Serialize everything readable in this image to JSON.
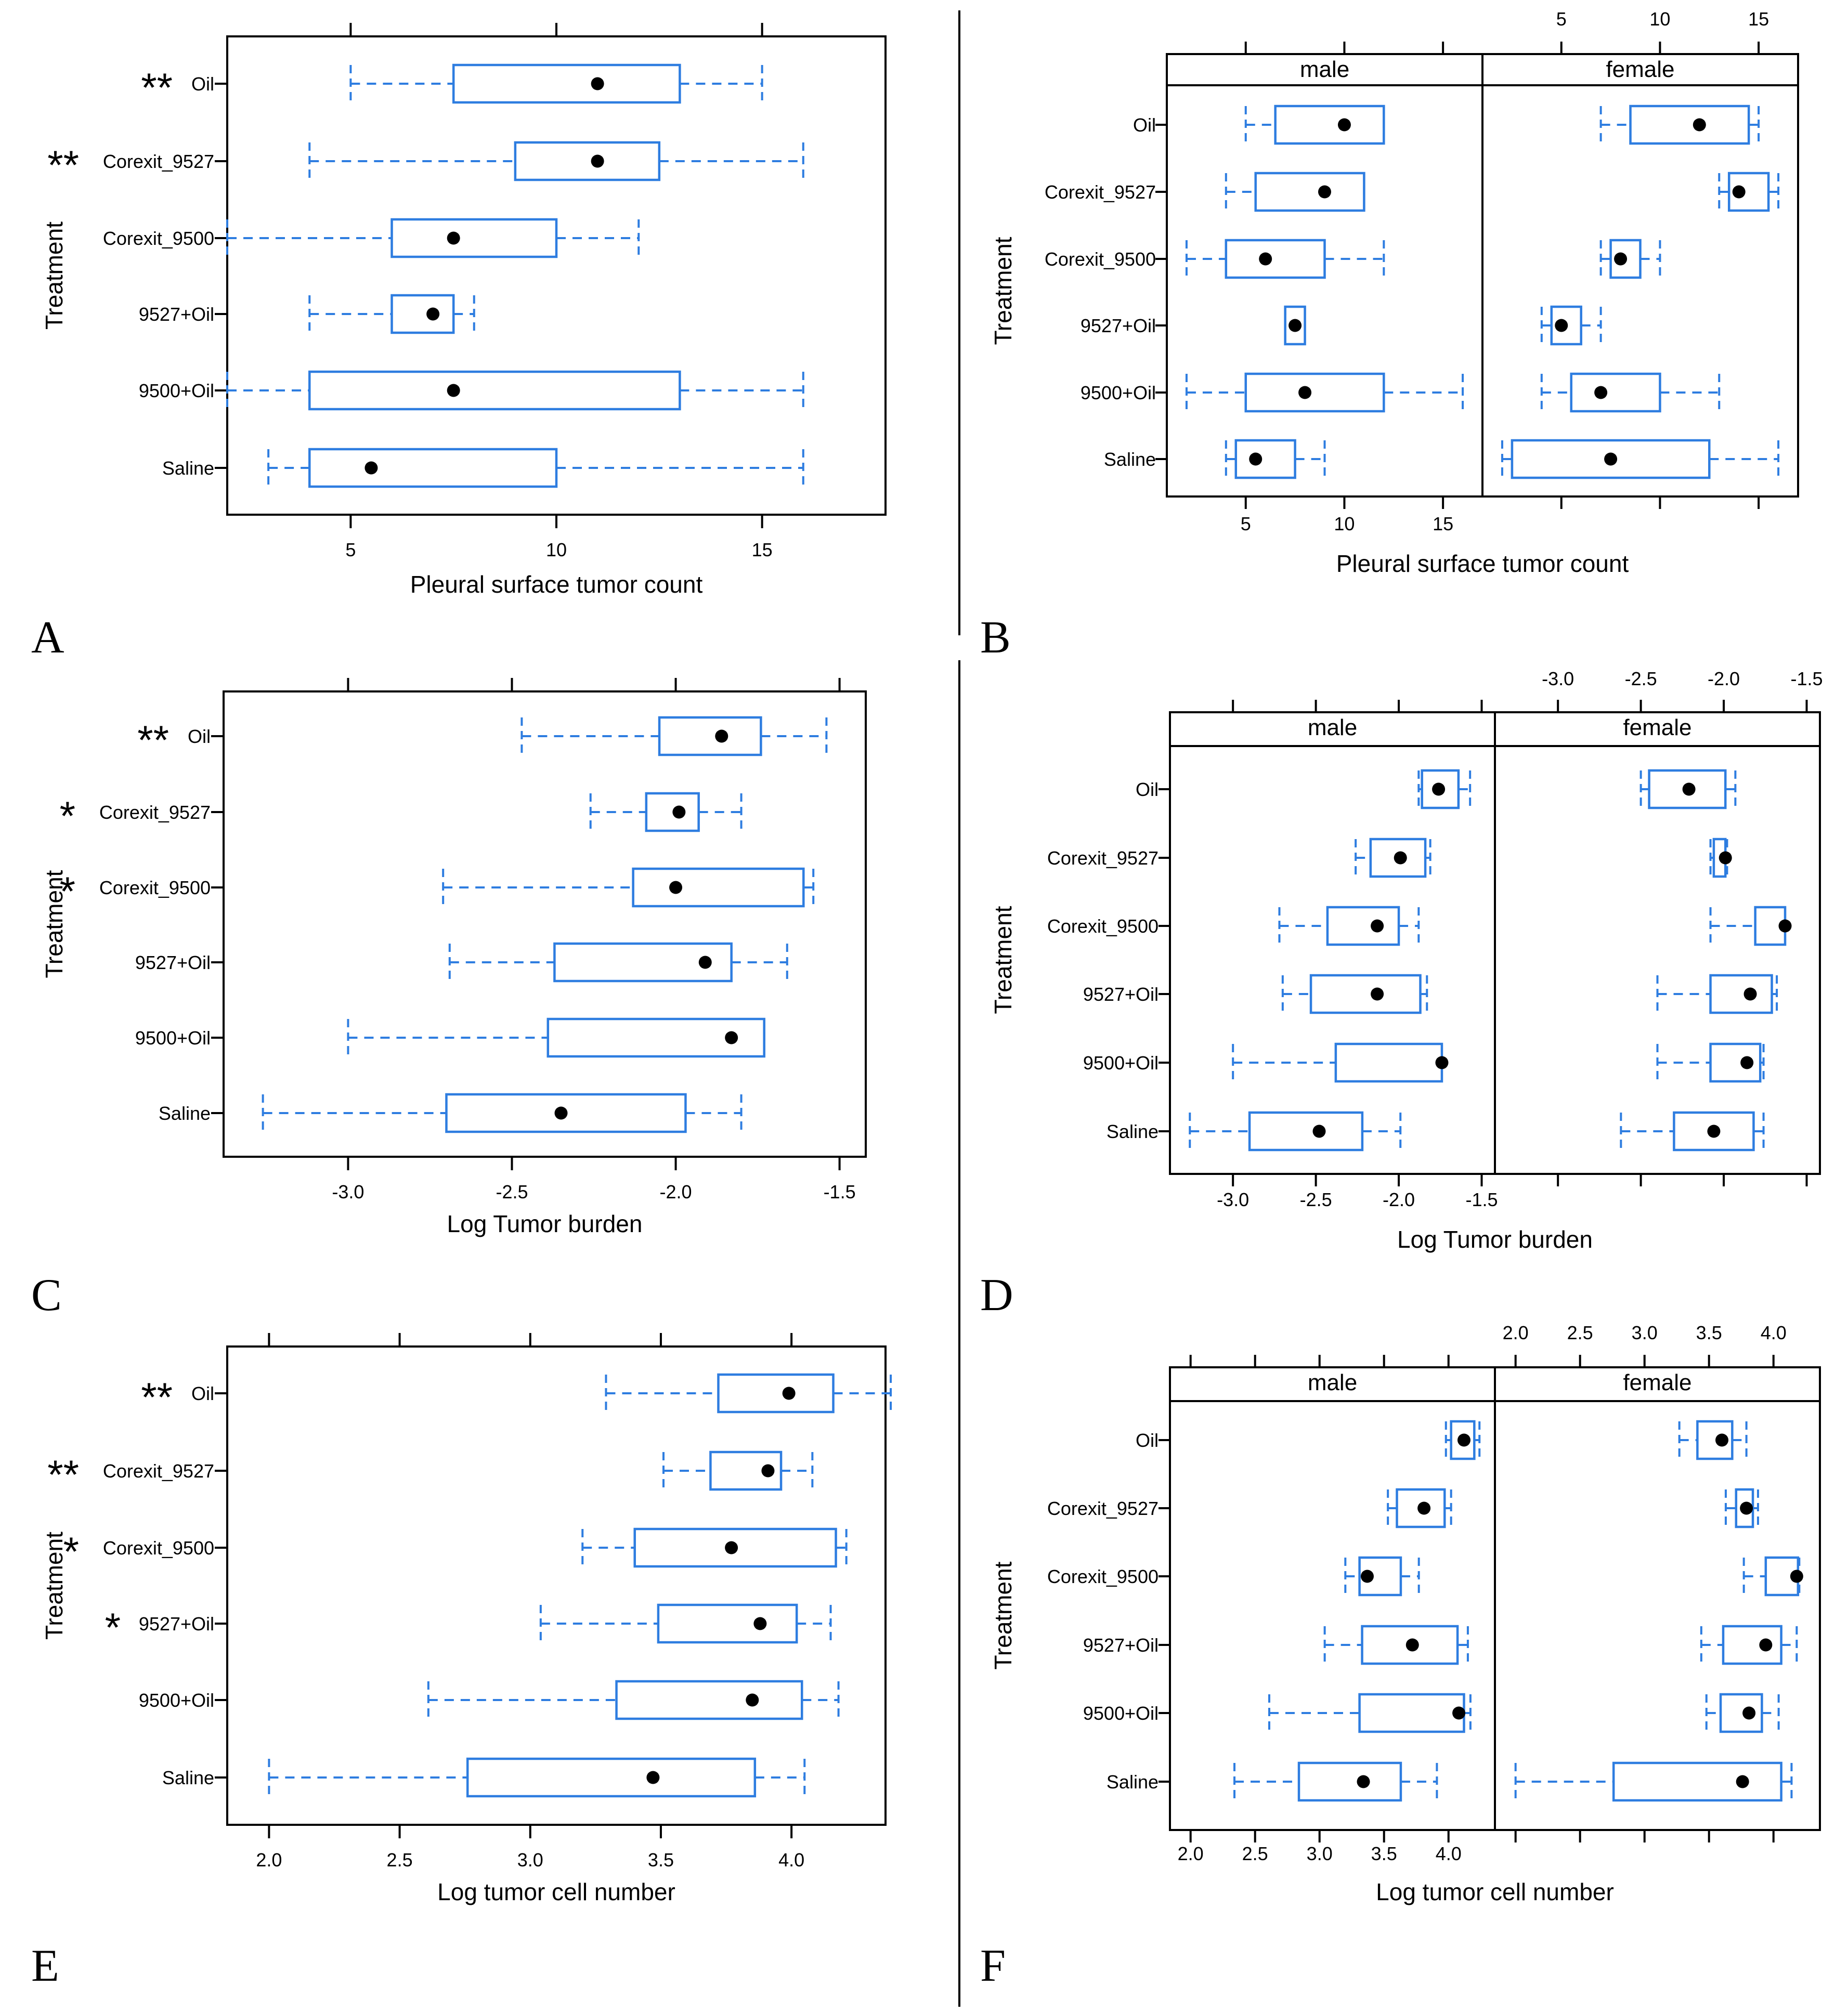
{
  "chart_data": [
    {
      "panel": "A",
      "type": "boxplot",
      "xlabel": "Pleural surface tumor count",
      "ylabel": "Treatment",
      "xticks": [
        "5",
        "10",
        "15"
      ],
      "xlim": [
        2,
        18
      ],
      "rows": [
        {
          "label": "Oil",
          "marker": "**",
          "stats": [
            5,
            7.5,
            11,
            13,
            15
          ]
        },
        {
          "label": "Corexit_9527",
          "marker": "**",
          "stats": [
            4,
            9,
            11,
            12.5,
            16
          ]
        },
        {
          "label": "Corexit_9500",
          "marker": "",
          "stats": [
            2,
            6,
            7.5,
            10,
            12
          ]
        },
        {
          "label": "9527+Oil",
          "marker": "",
          "stats": [
            4,
            6,
            7,
            7.5,
            8
          ]
        },
        {
          "label": "9500+Oil",
          "marker": "",
          "stats": [
            2,
            4,
            7.5,
            13,
            16
          ]
        },
        {
          "label": "Saline",
          "marker": "",
          "stats": [
            3,
            4,
            5.5,
            10,
            16
          ]
        }
      ]
    },
    {
      "panel": "B",
      "type": "boxplot",
      "xlabel": "Pleural surface tumor count",
      "ylabel": "Treatment",
      "xticks": [
        "5",
        "10",
        "15"
      ],
      "xlim": [
        1,
        17
      ],
      "strips": [
        "male",
        "female"
      ],
      "rows": [
        {
          "label": "Oil",
          "male": [
            5,
            6.5,
            10,
            12,
            12
          ],
          "female": [
            7,
            8.5,
            12,
            14.5,
            15
          ]
        },
        {
          "label": "Corexit_9527",
          "male": [
            4,
            5.5,
            9,
            11,
            11
          ],
          "female": [
            13,
            13.5,
            14,
            15.5,
            16
          ]
        },
        {
          "label": "Corexit_9500",
          "male": [
            2,
            4,
            6,
            9,
            12
          ],
          "female": [
            7,
            7.5,
            8,
            9,
            10
          ]
        },
        {
          "label": "9527+Oil",
          "male": [
            7,
            7,
            7.5,
            8,
            8
          ],
          "female": [
            4,
            4.5,
            5,
            6,
            7
          ]
        },
        {
          "label": "9500+Oil",
          "male": [
            2,
            5,
            8,
            12,
            16
          ],
          "female": [
            4,
            5.5,
            7,
            10,
            13
          ]
        },
        {
          "label": "Saline",
          "male": [
            4,
            4.5,
            5.5,
            7.5,
            9
          ],
          "female": [
            2,
            2.5,
            7.5,
            12.5,
            16
          ]
        }
      ]
    },
    {
      "panel": "C",
      "type": "boxplot",
      "xlabel": "Log Tumor burden",
      "ylabel": "Treatment",
      "xticks": [
        "-3.0",
        "-2.5",
        "-2.0",
        "-1.5"
      ],
      "xlim": [
        -3.38,
        -1.42
      ],
      "rows": [
        {
          "label": "Oil",
          "marker": "**",
          "stats": [
            -2.47,
            -2.05,
            -1.86,
            -1.74,
            -1.54
          ]
        },
        {
          "label": "Corexit_9527",
          "marker": "*",
          "stats": [
            -2.26,
            -2.09,
            -1.99,
            -1.93,
            -1.8
          ]
        },
        {
          "label": "Corexit_9500",
          "marker": "*",
          "stats": [
            -2.71,
            -2.13,
            -2.0,
            -1.61,
            -1.58
          ]
        },
        {
          "label": "9527+Oil",
          "marker": "",
          "stats": [
            -2.69,
            -2.37,
            -1.91,
            -1.83,
            -1.66
          ]
        },
        {
          "label": "9500+Oil",
          "marker": "",
          "stats": [
            -3.0,
            -2.39,
            -1.83,
            -1.73,
            -1.73
          ]
        },
        {
          "label": "Saline",
          "marker": "",
          "stats": [
            -3.26,
            -2.7,
            -2.35,
            -1.97,
            -1.8
          ]
        }
      ]
    },
    {
      "panel": "D",
      "type": "boxplot",
      "xlabel": "Log Tumor burden",
      "ylabel": "Treatment",
      "xticks": [
        "-3.0",
        "-2.5",
        "-2.0",
        "-1.5"
      ],
      "xlim": [
        -3.38,
        -1.42
      ],
      "strips": [
        "male",
        "female"
      ],
      "rows": [
        {
          "label": "Oil",
          "male": [
            -1.88,
            -1.86,
            -1.76,
            -1.64,
            -1.57
          ],
          "female": [
            -2.5,
            -2.45,
            -2.21,
            -1.99,
            -1.93
          ]
        },
        {
          "label": "Corexit_9527",
          "male": [
            -2.26,
            -2.17,
            -1.99,
            -1.84,
            -1.81
          ],
          "female": [
            -2.08,
            -2.06,
            -1.99,
            -1.99,
            -1.98
          ]
        },
        {
          "label": "Corexit_9500",
          "male": [
            -2.72,
            -2.43,
            -2.13,
            -2.0,
            -1.88
          ],
          "female": [
            -2.08,
            -1.81,
            -1.63,
            -1.63,
            -1.63
          ]
        },
        {
          "label": "9527+Oil",
          "male": [
            -2.7,
            -2.53,
            -2.13,
            -1.87,
            -1.83
          ],
          "female": [
            -2.4,
            -2.08,
            -1.84,
            -1.71,
            -1.68
          ]
        },
        {
          "label": "9500+Oil",
          "male": [
            -3.0,
            -2.38,
            -1.74,
            -1.74,
            -1.74
          ],
          "female": [
            -2.4,
            -2.08,
            -1.86,
            -1.78,
            -1.76
          ]
        },
        {
          "label": "Saline",
          "male": [
            -3.26,
            -2.9,
            -2.48,
            -2.22,
            -1.99
          ],
          "female": [
            -2.62,
            -2.3,
            -2.06,
            -1.82,
            -1.76
          ]
        }
      ]
    },
    {
      "panel": "E",
      "type": "boxplot",
      "xlabel": "Log tumor cell number",
      "ylabel": "Treatment",
      "xticks": [
        "2.0",
        "2.5",
        "3.0",
        "3.5",
        "4.0"
      ],
      "xlim": [
        1.84,
        4.36
      ],
      "rows": [
        {
          "label": "Oil",
          "marker": "**",
          "stats": [
            3.29,
            3.72,
            3.99,
            4.16,
            4.38
          ]
        },
        {
          "label": "Corexit_9527",
          "marker": "**",
          "stats": [
            3.51,
            3.69,
            3.91,
            3.96,
            4.08
          ]
        },
        {
          "label": "Corexit_9500",
          "marker": "*",
          "stats": [
            3.2,
            3.4,
            3.77,
            4.17,
            4.21
          ]
        },
        {
          "label": "9527+Oil",
          "marker": "*",
          "stats": [
            3.04,
            3.49,
            3.88,
            4.02,
            4.15
          ]
        },
        {
          "label": "9500+Oil",
          "marker": "",
          "stats": [
            2.61,
            3.33,
            3.85,
            4.04,
            4.18
          ]
        },
        {
          "label": "Saline",
          "marker": "",
          "stats": [
            2.0,
            2.76,
            3.47,
            3.86,
            4.05
          ]
        }
      ]
    },
    {
      "panel": "F",
      "type": "boxplot",
      "xlabel": "Log tumor cell number",
      "ylabel": "Treatment",
      "xticks": [
        "2.0",
        "2.5",
        "3.0",
        "3.5",
        "4.0"
      ],
      "xlim": [
        1.84,
        4.36
      ],
      "strips": [
        "male",
        "female"
      ],
      "rows": [
        {
          "label": "Oil",
          "male": [
            3.98,
            4.02,
            4.12,
            4.2,
            4.24
          ],
          "female": [
            3.27,
            3.41,
            3.6,
            3.68,
            3.79
          ]
        },
        {
          "label": "Corexit_9527",
          "male": [
            3.53,
            3.6,
            3.81,
            3.97,
            4.02
          ],
          "female": [
            3.63,
            3.71,
            3.79,
            3.84,
            3.88
          ]
        },
        {
          "label": "Corexit_9500",
          "male": [
            3.2,
            3.31,
            3.37,
            3.63,
            3.77
          ],
          "female": [
            3.77,
            3.94,
            4.18,
            4.19,
            4.2
          ]
        },
        {
          "label": "9527+Oil",
          "male": [
            3.04,
            3.33,
            3.72,
            4.07,
            4.15
          ],
          "female": [
            3.44,
            3.61,
            3.94,
            4.06,
            4.18
          ]
        },
        {
          "label": "9500+Oil",
          "male": [
            2.61,
            3.31,
            4.08,
            4.12,
            4.17
          ],
          "female": [
            3.48,
            3.59,
            3.81,
            3.91,
            4.04
          ]
        },
        {
          "label": "Saline",
          "male": [
            2.34,
            2.84,
            3.34,
            3.63,
            3.91
          ],
          "female": [
            2.0,
            2.76,
            3.76,
            4.06,
            4.14
          ]
        }
      ]
    }
  ]
}
